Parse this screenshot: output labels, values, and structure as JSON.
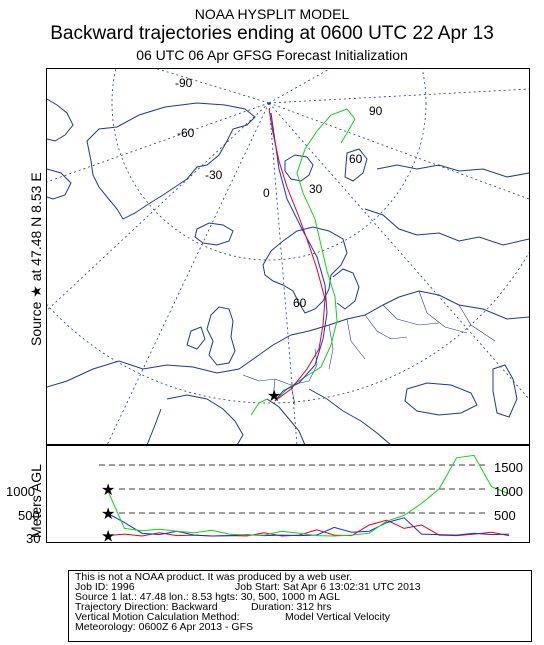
{
  "header": {
    "line1": "NOAA HYSPLIT MODEL",
    "line2": "Backward trajectories ending at 0600 UTC 22 Apr 13",
    "line3": "06 UTC 06 Apr    GFSG  Forecast Initialization"
  },
  "side": {
    "source_label": "Source ★ at   47.48 N    8.53 E",
    "altitude_axis_label": "Meters AGL"
  },
  "map": {
    "graticule_labels": [
      "-90",
      "-60",
      "-30",
      "0",
      "30",
      "60",
      "90",
      "60"
    ],
    "source_marker": "★",
    "colors": {
      "coast": "#1a3b8c",
      "graticule": "#1a3b8c",
      "traj_30m": "#e8001a",
      "traj_500m": "#1530e8",
      "traj_1000m": "#12d312"
    }
  },
  "altitude_panel": {
    "levels_left": [
      "1000",
      "500",
      "30"
    ],
    "levels_right": [
      "1500",
      "1000",
      "500"
    ],
    "source_marker": "★"
  },
  "footer": {
    "line1": "This is not a NOAA product. It was produced by a web user.",
    "job_id": "Job ID: 1996",
    "job_start": "Job Start: Sat Apr  6 13:02:31 UTC 2013",
    "source_line": "Source 1 lat.: 47.48  lon.: 8.53  hgts: 30, 500, 1000 m AGL",
    "direction": "Trajectory Direction: Backward",
    "duration": "Duration: 312 hrs",
    "vertical_method": "Vertical Motion Calculation Method:",
    "vertical_value": "Model Vertical Velocity",
    "meteorology": "Meteorology: 0600Z  6 Apr 2013 - GFS"
  },
  "chart_data": {
    "type": "line",
    "title": "",
    "ylabel": "Meters AGL",
    "y_ticks": [
      30,
      500,
      1000,
      1500
    ],
    "start_heights_m": [
      30,
      500,
      1000
    ],
    "series": [
      {
        "color": "#e8001a",
        "values": [
          30,
          60,
          20,
          90,
          30,
          40,
          20,
          30,
          20,
          90,
          20,
          40,
          150,
          40,
          30,
          250,
          350,
          180,
          250,
          40,
          30,
          60,
          100,
          30
        ]
      },
      {
        "color": "#1530e8",
        "values": [
          500,
          300,
          80,
          50,
          120,
          40,
          20,
          30,
          50,
          30,
          40,
          30,
          40,
          200,
          100,
          120,
          300,
          400,
          60,
          50,
          40,
          80,
          50,
          60
        ]
      },
      {
        "color": "#12d312",
        "values": [
          1000,
          180,
          130,
          160,
          120,
          90,
          140,
          60,
          40,
          40,
          120,
          80,
          30,
          20,
          40,
          80,
          330,
          450,
          700,
          1000,
          1650,
          1700,
          1050,
          900
        ]
      }
    ]
  }
}
